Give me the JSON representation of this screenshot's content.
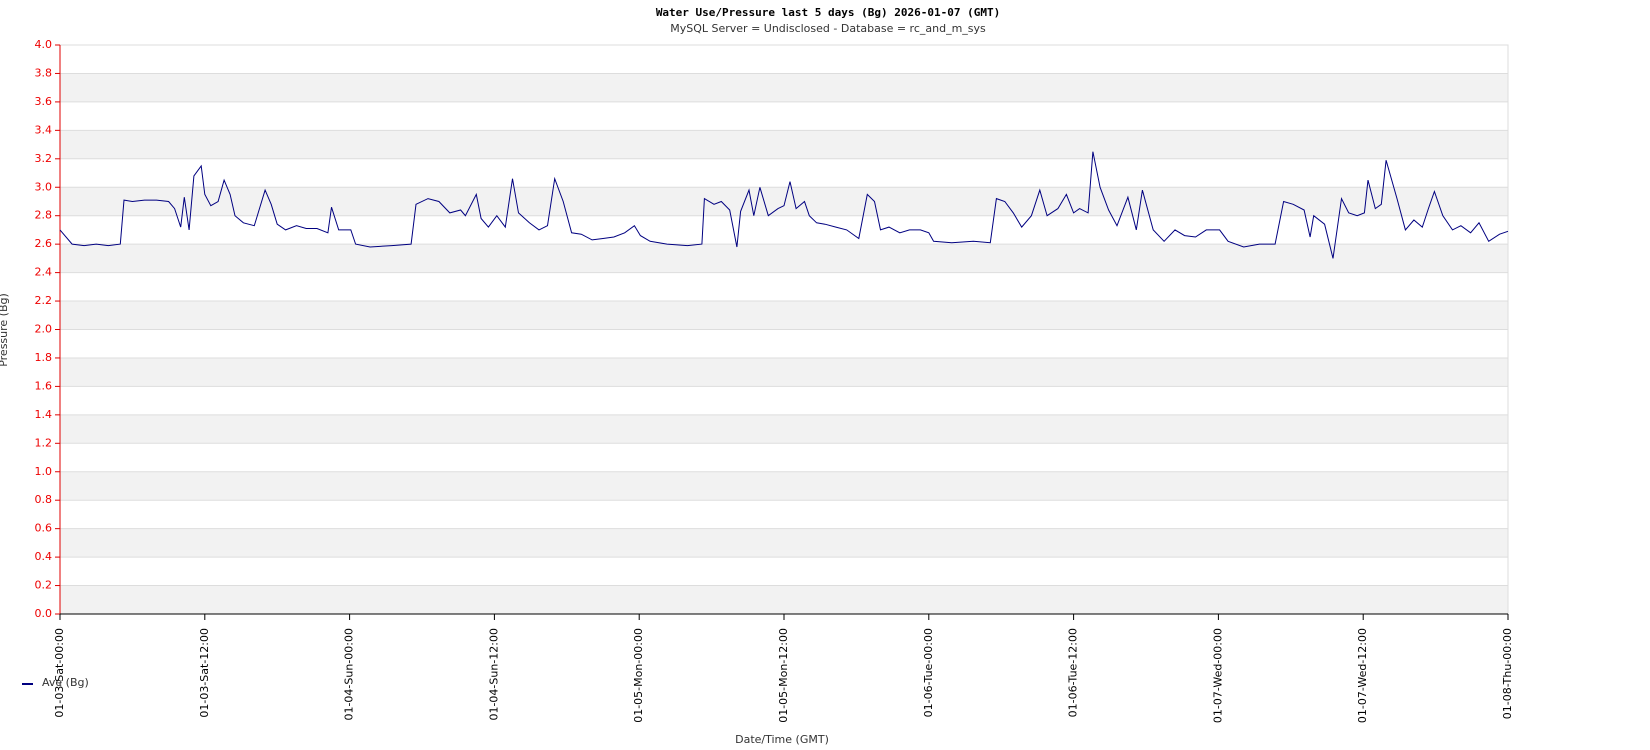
{
  "chart_data": {
    "type": "line",
    "title": "Water Use/Pressure last 5     days (Bg) 2026-01-07 (GMT)",
    "subtitle": "MySQL Server = Undisclosed - Database = rc_and_m_sys",
    "x_label": "Date/Time (GMT)",
    "y_label": "Pressure (Bg)",
    "xlim": [
      0,
      120
    ],
    "xticks": [
      {
        "value": 0,
        "label": "01-03-Sat-00:00"
      },
      {
        "value": 12,
        "label": "01-03-Sat-12:00"
      },
      {
        "value": 24,
        "label": "01-04-Sun-00:00"
      },
      {
        "value": 36,
        "label": "01-04-Sun-12:00"
      },
      {
        "value": 48,
        "label": "01-05-Mon-00:00"
      },
      {
        "value": 60,
        "label": "01-05-Mon-12:00"
      },
      {
        "value": 72,
        "label": "01-06-Tue-00:00"
      },
      {
        "value": 84,
        "label": "01-06-Tue-12:00"
      },
      {
        "value": 96,
        "label": "01-07-Wed-00:00"
      },
      {
        "value": 108,
        "label": "01-07-Wed-12:00"
      },
      {
        "value": 120,
        "label": "01-08-Thu-00:00"
      }
    ],
    "ylim": [
      0,
      4
    ],
    "yticks": [
      {
        "value": 0,
        "label": "0.0"
      },
      {
        "value": 0.2,
        "label": "0.2"
      },
      {
        "value": 0.4,
        "label": "0.4"
      },
      {
        "value": 0.6,
        "label": "0.6"
      },
      {
        "value": 0.8,
        "label": "0.8"
      },
      {
        "value": 1,
        "label": "1.0"
      },
      {
        "value": 1.2,
        "label": "1.2"
      },
      {
        "value": 1.4,
        "label": "1.4"
      },
      {
        "value": 1.6,
        "label": "1.6"
      },
      {
        "value": 1.8,
        "label": "1.8"
      },
      {
        "value": 2,
        "label": "2.0"
      },
      {
        "value": 2.2,
        "label": "2.2"
      },
      {
        "value": 2.4,
        "label": "2.4"
      },
      {
        "value": 2.6,
        "label": "2.6"
      },
      {
        "value": 2.8,
        "label": "2.8"
      },
      {
        "value": 3,
        "label": "3.0"
      },
      {
        "value": 3.2,
        "label": "3.2"
      },
      {
        "value": 3.4,
        "label": "3.4"
      },
      {
        "value": 3.6,
        "label": "3.6"
      },
      {
        "value": 3.8,
        "label": "3.8"
      },
      {
        "value": 4,
        "label": "4.0"
      }
    ],
    "axis_color": "#e00000",
    "band_color": "#f2f2f2",
    "x": [
      0,
      1,
      2,
      3,
      4,
      5,
      5.3,
      6,
      7,
      8,
      9,
      9.5,
      10,
      10.3,
      10.7,
      11.1,
      11.7,
      12,
      12.5,
      13.1,
      13.6,
      14.1,
      14.5,
      15.2,
      16.1,
      17,
      17.5,
      18,
      18.7,
      19.6,
      20.4,
      21.3,
      22.2,
      22.5,
      23.1,
      24.1,
      24.5,
      25.7,
      27.5,
      29.1,
      29.5,
      30.5,
      31.4,
      32.3,
      33.2,
      33.6,
      34.5,
      34.9,
      35.5,
      36.2,
      36.9,
      37.5,
      38,
      38.9,
      39.7,
      40.4,
      41,
      41.7,
      42.4,
      43.2,
      44.1,
      45,
      45.9,
      46.8,
      47.6,
      48.1,
      48.9,
      50.3,
      52,
      53.2,
      53.4,
      54.2,
      54.8,
      55.5,
      56.1,
      56.4,
      57.1,
      57.5,
      58,
      58.7,
      59.5,
      60,
      60.5,
      61,
      61.7,
      62.1,
      62.7,
      63.4,
      64.3,
      65.2,
      66.2,
      66.9,
      67.5,
      68,
      68.7,
      69.6,
      70.4,
      71.3,
      72,
      72.4,
      73.9,
      75.7,
      77.1,
      77.6,
      78.3,
      79,
      79.7,
      80.5,
      81.2,
      81.8,
      82.7,
      83.4,
      84,
      84.5,
      85.2,
      85.6,
      86.2,
      86.9,
      87.6,
      88.5,
      89.2,
      89.7,
      90.6,
      91.5,
      92.4,
      93.2,
      94.1,
      95,
      96.1,
      96.8,
      98.1,
      99.4,
      100.7,
      101.4,
      102.2,
      103.1,
      103.6,
      103.9,
      104.8,
      105.5,
      106.2,
      106.8,
      107.5,
      108.1,
      108.4,
      109,
      109.5,
      109.9,
      110.8,
      111.5,
      112.2,
      112.9,
      113.4,
      113.9,
      114.6,
      115.4,
      116.1,
      116.9,
      117.6,
      118.4,
      119.3,
      120
    ],
    "series": [
      {
        "name": "Ave (Bg)",
        "color": "#000080",
        "values": [
          2.7,
          2.6,
          2.59,
          2.6,
          2.59,
          2.6,
          2.91,
          2.9,
          2.91,
          2.91,
          2.9,
          2.85,
          2.72,
          2.93,
          2.7,
          3.08,
          3.15,
          2.95,
          2.87,
          2.9,
          3.05,
          2.95,
          2.8,
          2.75,
          2.73,
          2.98,
          2.88,
          2.74,
          2.7,
          2.73,
          2.71,
          2.71,
          2.68,
          2.86,
          2.7,
          2.7,
          2.6,
          2.58,
          2.59,
          2.6,
          2.88,
          2.92,
          2.9,
          2.82,
          2.84,
          2.8,
          2.95,
          2.78,
          2.72,
          2.8,
          2.72,
          3.06,
          2.82,
          2.75,
          2.7,
          2.73,
          3.06,
          2.9,
          2.68,
          2.67,
          2.63,
          2.64,
          2.65,
          2.68,
          2.73,
          2.66,
          2.62,
          2.6,
          2.59,
          2.6,
          2.92,
          2.88,
          2.9,
          2.84,
          2.58,
          2.83,
          2.98,
          2.8,
          3.0,
          2.8,
          2.85,
          2.87,
          3.04,
          2.85,
          2.9,
          2.8,
          2.75,
          2.74,
          2.72,
          2.7,
          2.64,
          2.95,
          2.9,
          2.7,
          2.72,
          2.68,
          2.7,
          2.7,
          2.68,
          2.62,
          2.61,
          2.62,
          2.61,
          2.92,
          2.9,
          2.82,
          2.72,
          2.8,
          2.98,
          2.8,
          2.85,
          2.95,
          2.82,
          2.85,
          2.82,
          3.25,
          3.0,
          2.84,
          2.73,
          2.93,
          2.7,
          2.98,
          2.7,
          2.62,
          2.7,
          2.66,
          2.65,
          2.7,
          2.7,
          2.62,
          2.58,
          2.6,
          2.6,
          2.9,
          2.88,
          2.84,
          2.65,
          2.8,
          2.74,
          2.5,
          2.92,
          2.82,
          2.8,
          2.82,
          3.05,
          2.85,
          2.88,
          3.19,
          2.92,
          2.7,
          2.77,
          2.72,
          2.85,
          2.97,
          2.8,
          2.7,
          2.73,
          2.68,
          2.75,
          2.62,
          2.67,
          2.69
        ]
      }
    ]
  }
}
